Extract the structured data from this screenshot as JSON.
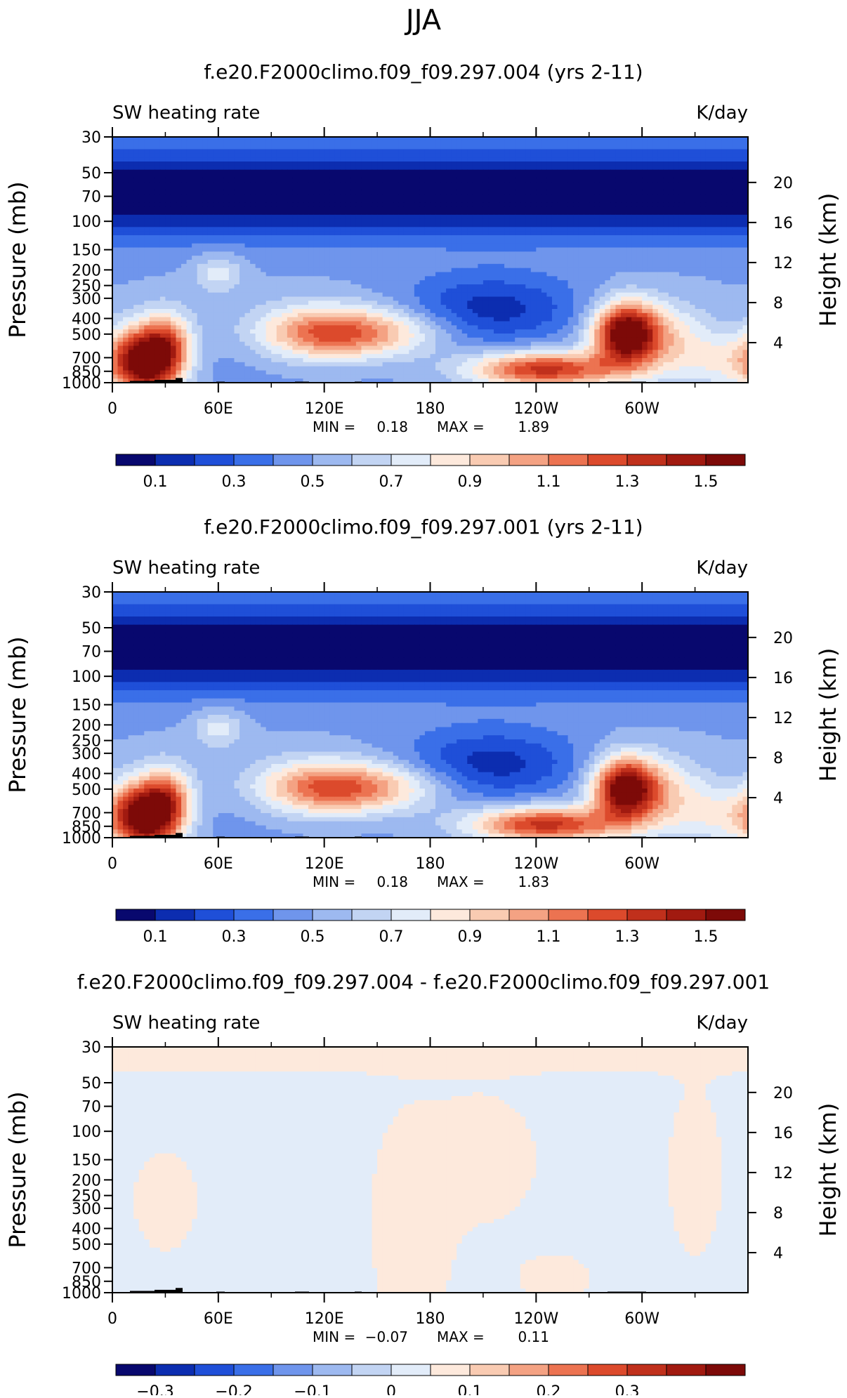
{
  "figure_title": "JJA",
  "chart_data": [
    {
      "type": "heatmap",
      "title": "f.e20.F2000climo.f09_f09.297.004 (yrs 2-11)",
      "left_label": "SW heating rate",
      "right_label": "K/day",
      "ylabel": "Pressure (mb)",
      "ylabel_right": "Height (km)",
      "x_ticks": [
        "0",
        "60E",
        "120E",
        "180",
        "120W",
        "60W"
      ],
      "y_ticks": [
        "30",
        "50",
        "70",
        "100",
        "150",
        "200",
        "250",
        "300",
        "400",
        "500",
        "700",
        "850",
        "1000"
      ],
      "y_ticks_right": [
        "20",
        "16",
        "12",
        "8",
        "4"
      ],
      "xlim": [
        0,
        360
      ],
      "ylim": [
        1000,
        30
      ],
      "stats": {
        "min_label": "MIN =",
        "min": "0.18",
        "max_label": "MAX =",
        "max": "1.89"
      },
      "colorbar": {
        "levels": [
          0.1,
          0.2,
          0.3,
          0.4,
          0.5,
          0.6,
          0.7,
          0.8,
          0.9,
          1.0,
          1.1,
          1.2,
          1.3,
          1.4,
          1.5
        ],
        "labels": [
          "0.1",
          "0.3",
          "0.5",
          "0.7",
          "0.9",
          "1.1",
          "1.3",
          "1.5"
        ],
        "colors": [
          "#08086e",
          "#0c2db0",
          "#1f4fd8",
          "#3a6fe8",
          "#6f95ec",
          "#9db9f0",
          "#c2d4f3",
          "#e2ecf9",
          "#fde9dc",
          "#f9cbb2",
          "#f4a283",
          "#ec7351",
          "#dc4a2c",
          "#c0301c",
          "#a11a10",
          "#7d0a08"
        ]
      },
      "grid": false
    },
    {
      "type": "heatmap",
      "title": "f.e20.F2000climo.f09_f09.297.001 (yrs 2-11)",
      "left_label": "SW heating rate",
      "right_label": "K/day",
      "ylabel": "Pressure (mb)",
      "ylabel_right": "Height (km)",
      "x_ticks": [
        "0",
        "60E",
        "120E",
        "180",
        "120W",
        "60W"
      ],
      "y_ticks": [
        "30",
        "50",
        "70",
        "100",
        "150",
        "200",
        "250",
        "300",
        "400",
        "500",
        "700",
        "850",
        "1000"
      ],
      "y_ticks_right": [
        "20",
        "16",
        "12",
        "8",
        "4"
      ],
      "xlim": [
        0,
        360
      ],
      "ylim": [
        1000,
        30
      ],
      "stats": {
        "min_label": "MIN =",
        "min": "0.18",
        "max_label": "MAX =",
        "max": "1.83"
      },
      "colorbar": {
        "levels": [
          0.1,
          0.2,
          0.3,
          0.4,
          0.5,
          0.6,
          0.7,
          0.8,
          0.9,
          1.0,
          1.1,
          1.2,
          1.3,
          1.4,
          1.5
        ],
        "labels": [
          "0.1",
          "0.3",
          "0.5",
          "0.7",
          "0.9",
          "1.1",
          "1.3",
          "1.5"
        ],
        "colors": [
          "#08086e",
          "#0c2db0",
          "#1f4fd8",
          "#3a6fe8",
          "#6f95ec",
          "#9db9f0",
          "#c2d4f3",
          "#e2ecf9",
          "#fde9dc",
          "#f9cbb2",
          "#f4a283",
          "#ec7351",
          "#dc4a2c",
          "#c0301c",
          "#a11a10",
          "#7d0a08"
        ]
      },
      "grid": false
    },
    {
      "type": "heatmap",
      "title": "f.e20.F2000climo.f09_f09.297.004 - f.e20.F2000climo.f09_f09.297.001",
      "left_label": "SW heating rate",
      "right_label": "K/day",
      "ylabel": "Pressure (mb)",
      "ylabel_right": "Height (km)",
      "x_ticks": [
        "0",
        "60E",
        "120E",
        "180",
        "120W",
        "60W"
      ],
      "y_ticks": [
        "30",
        "50",
        "70",
        "100",
        "150",
        "200",
        "250",
        "300",
        "400",
        "500",
        "700",
        "850",
        "1000"
      ],
      "y_ticks_right": [
        "20",
        "16",
        "12",
        "8",
        "4"
      ],
      "xlim": [
        0,
        360
      ],
      "ylim": [
        1000,
        30
      ],
      "stats": {
        "min_label": "MIN =",
        "min": "−0.07",
        "max_label": "MAX =",
        "max": "0.11"
      },
      "colorbar": {
        "levels": [
          -0.35,
          -0.3,
          -0.25,
          -0.2,
          -0.15,
          -0.1,
          -0.05,
          0,
          0.05,
          0.1,
          0.15,
          0.2,
          0.25,
          0.3,
          0.35
        ],
        "labels": [
          "−0.3",
          "−0.2",
          "−0.1",
          "0",
          "0.1",
          "0.2",
          "0.3"
        ],
        "colors": [
          "#08086e",
          "#0c2db0",
          "#1f4fd8",
          "#3a6fe8",
          "#6f95ec",
          "#9db9f0",
          "#c2d4f3",
          "#e2ecf9",
          "#fde9dc",
          "#f9cbb2",
          "#f4a283",
          "#ec7351",
          "#dc4a2c",
          "#c0301c",
          "#a11a10",
          "#7d0a08"
        ]
      },
      "grid": false
    }
  ]
}
